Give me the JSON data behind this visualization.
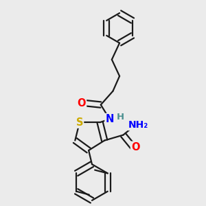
{
  "background_color": "#ebebeb",
  "bond_color": "#1a1a1a",
  "atom_colors": {
    "O": "#ff0000",
    "N": "#0000ff",
    "S": "#ccaa00",
    "H": "#4a9090",
    "C": "#1a1a1a"
  },
  "line_width": 1.6,
  "dbo": 0.013,
  "font_size": 10.5
}
